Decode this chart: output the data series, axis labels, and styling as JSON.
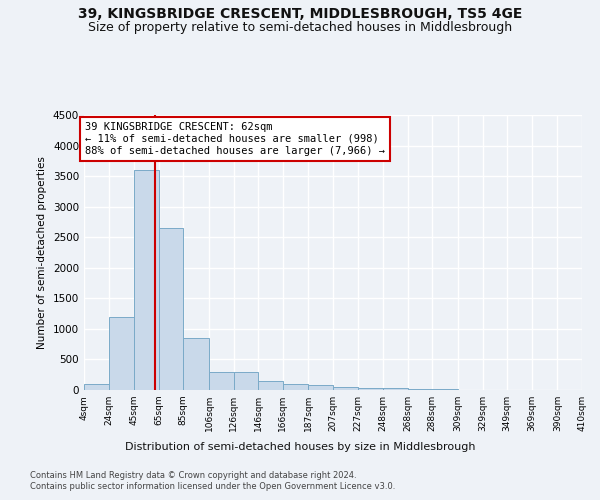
{
  "title": "39, KINGSBRIDGE CRESCENT, MIDDLESBROUGH, TS5 4GE",
  "subtitle": "Size of property relative to semi-detached houses in Middlesbrough",
  "xlabel": "Distribution of semi-detached houses by size in Middlesbrough",
  "ylabel": "Number of semi-detached properties",
  "bin_edges": [
    4,
    24,
    45,
    65,
    85,
    106,
    126,
    146,
    166,
    187,
    207,
    227,
    248,
    268,
    288,
    309,
    329,
    349,
    369,
    390,
    410
  ],
  "bar_heights": [
    100,
    1200,
    3600,
    2650,
    850,
    300,
    300,
    150,
    100,
    80,
    55,
    40,
    35,
    15,
    10,
    8,
    5,
    3,
    2,
    1
  ],
  "bar_color": "#c9d9ea",
  "bar_edgecolor": "#7aaac8",
  "property_size": 62,
  "red_line_color": "#cc0000",
  "annotation_title": "39 KINGSBRIDGE CRESCENT: 62sqm",
  "annotation_line1": "← 11% of semi-detached houses are smaller (998)",
  "annotation_line2": "88% of semi-detached houses are larger (7,966) →",
  "annotation_box_color": "#ffffff",
  "annotation_box_edgecolor": "#cc0000",
  "ylim": [
    0,
    4500
  ],
  "yticks": [
    0,
    500,
    1000,
    1500,
    2000,
    2500,
    3000,
    3500,
    4000,
    4500
  ],
  "footer_line1": "Contains HM Land Registry data © Crown copyright and database right 2024.",
  "footer_line2": "Contains public sector information licensed under the Open Government Licence v3.0.",
  "bg_color": "#eef2f7",
  "plot_bg_color": "#eef2f7",
  "grid_color": "#ffffff",
  "title_fontsize": 10,
  "subtitle_fontsize": 9
}
